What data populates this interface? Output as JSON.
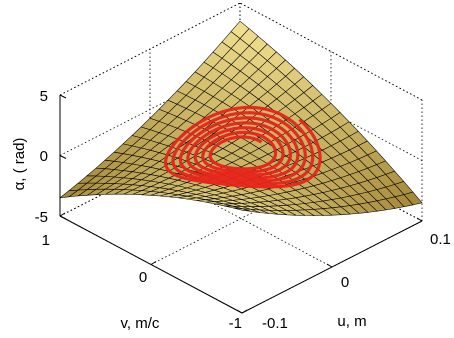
{
  "chart_data": {
    "type": "surface3d",
    "xlabel": "u, m",
    "ylabel": "v, m/c",
    "zlabel": "α, ( rad)",
    "xlim": [
      -0.1,
      0.1
    ],
    "ylim": [
      -1,
      1
    ],
    "zlim": [
      -5,
      5
    ],
    "x_ticks": [
      "-0.1",
      "0",
      "0.1"
    ],
    "y_ticks": [
      "-1",
      "0",
      "1"
    ],
    "z_ticks": [
      "-5",
      "0",
      "5"
    ],
    "grid": true,
    "surface": {
      "description_color_min": "#6b4a1a",
      "description_color_max": "#fff3b0",
      "mesh_color": "#000000",
      "x": [
        -0.1,
        -0.08,
        -0.06,
        -0.04,
        -0.02,
        0,
        0.02,
        0.04,
        0.06,
        0.08,
        0.1
      ],
      "y": [
        -1,
        -0.8,
        -0.6,
        -0.4,
        -0.2,
        0,
        0.2,
        0.4,
        0.6,
        0.8,
        1
      ]
    },
    "trajectory": {
      "color": "#e8231a",
      "type": "spiral",
      "u_amplitude": 0.065,
      "v_amplitude": 0.6
    }
  }
}
